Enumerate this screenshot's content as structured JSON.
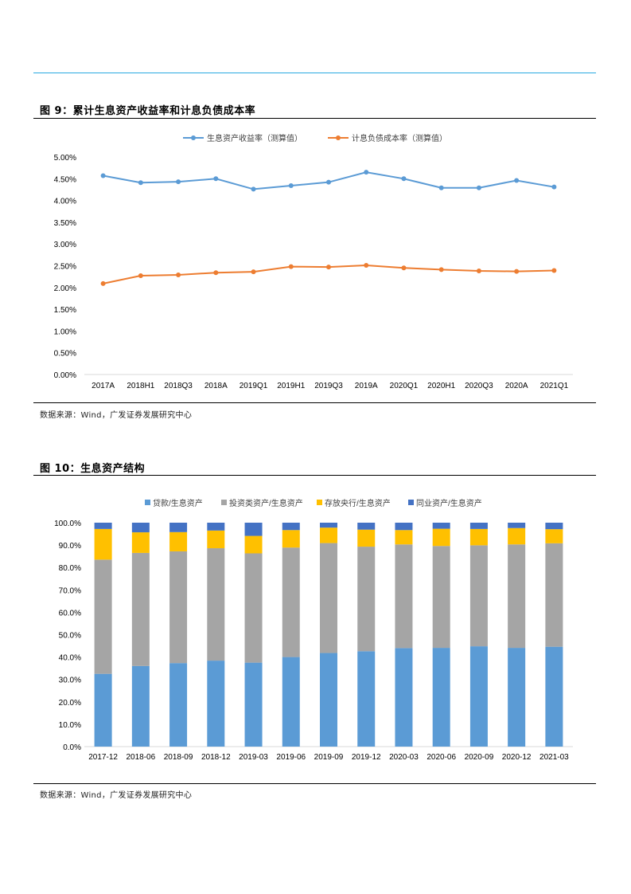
{
  "fig1": {
    "title": "图 9：累计生息资产收益率和计息负债成本率",
    "source": "数据来源：Wind，广发证券发展研究中心"
  },
  "fig2": {
    "title": "图 10：生息资产结构",
    "source": "数据来源：Wind，广发证券发展研究中心"
  },
  "chart_data": [
    {
      "type": "line",
      "title": "图 9：累计生息资产收益率和计息负债成本率",
      "x": [
        "2017A",
        "2018H1",
        "2018Q3",
        "2018A",
        "2019Q1",
        "2019H1",
        "2019Q3",
        "2019A",
        "2020Q1",
        "2020H1",
        "2020Q3",
        "2020A",
        "2021Q1"
      ],
      "series": [
        {
          "name": "生息资产收益率（测算值）",
          "color": "#5b9bd5",
          "values": [
            4.57,
            4.41,
            4.43,
            4.5,
            4.26,
            4.34,
            4.42,
            4.65,
            4.5,
            4.29,
            4.29,
            4.46,
            4.31
          ]
        },
        {
          "name": "计息负债成本率（测算值）",
          "color": "#ed7d31",
          "values": [
            2.09,
            2.27,
            2.29,
            2.34,
            2.36,
            2.48,
            2.47,
            2.51,
            2.45,
            2.41,
            2.38,
            2.37,
            2.39
          ]
        }
      ],
      "yticks": [
        "0.00%",
        "0.50%",
        "1.00%",
        "1.50%",
        "2.00%",
        "2.50%",
        "3.00%",
        "3.50%",
        "4.00%",
        "4.50%",
        "5.00%"
      ],
      "ylim": [
        0,
        5
      ],
      "legend": "top",
      "grid": false
    },
    {
      "type": "bar",
      "stacked": true,
      "title": "图 10：生息资产结构",
      "categories": [
        "2017-12",
        "2018-06",
        "2018-09",
        "2018-12",
        "2019-03",
        "2019-06",
        "2019-09",
        "2019-12",
        "2020-03",
        "2020-06",
        "2020-09",
        "2020-12",
        "2021-03"
      ],
      "series": [
        {
          "name": "贷款/生息资产",
          "color": "#5b9bd5",
          "values": [
            32.5,
            36.0,
            37.3,
            38.4,
            37.5,
            40.0,
            41.8,
            42.6,
            44.0,
            44.1,
            44.8,
            44.1,
            44.6
          ]
        },
        {
          "name": "投资类资产/生息资产",
          "color": "#a5a5a5",
          "values": [
            51.0,
            50.5,
            49.9,
            50.2,
            48.8,
            48.9,
            49.1,
            46.7,
            46.3,
            45.5,
            45.1,
            46.2,
            46.2
          ]
        },
        {
          "name": "存放央行/生息资产",
          "color": "#ffc000",
          "values": [
            13.7,
            9.2,
            8.6,
            7.9,
            7.8,
            7.8,
            6.9,
            7.6,
            6.4,
            7.7,
            7.3,
            7.3,
            6.3
          ]
        },
        {
          "name": "同业资产/生息资产",
          "color": "#4472c4",
          "values": [
            2.8,
            4.3,
            4.2,
            3.5,
            5.9,
            3.3,
            2.2,
            3.1,
            3.3,
            2.7,
            2.8,
            2.4,
            2.9
          ]
        }
      ],
      "yticks": [
        "0.0%",
        "10.0%",
        "20.0%",
        "30.0%",
        "40.0%",
        "50.0%",
        "60.0%",
        "70.0%",
        "80.0%",
        "90.0%",
        "100.0%"
      ],
      "ylim": [
        0,
        100
      ],
      "legend": "top",
      "grid": false
    }
  ]
}
